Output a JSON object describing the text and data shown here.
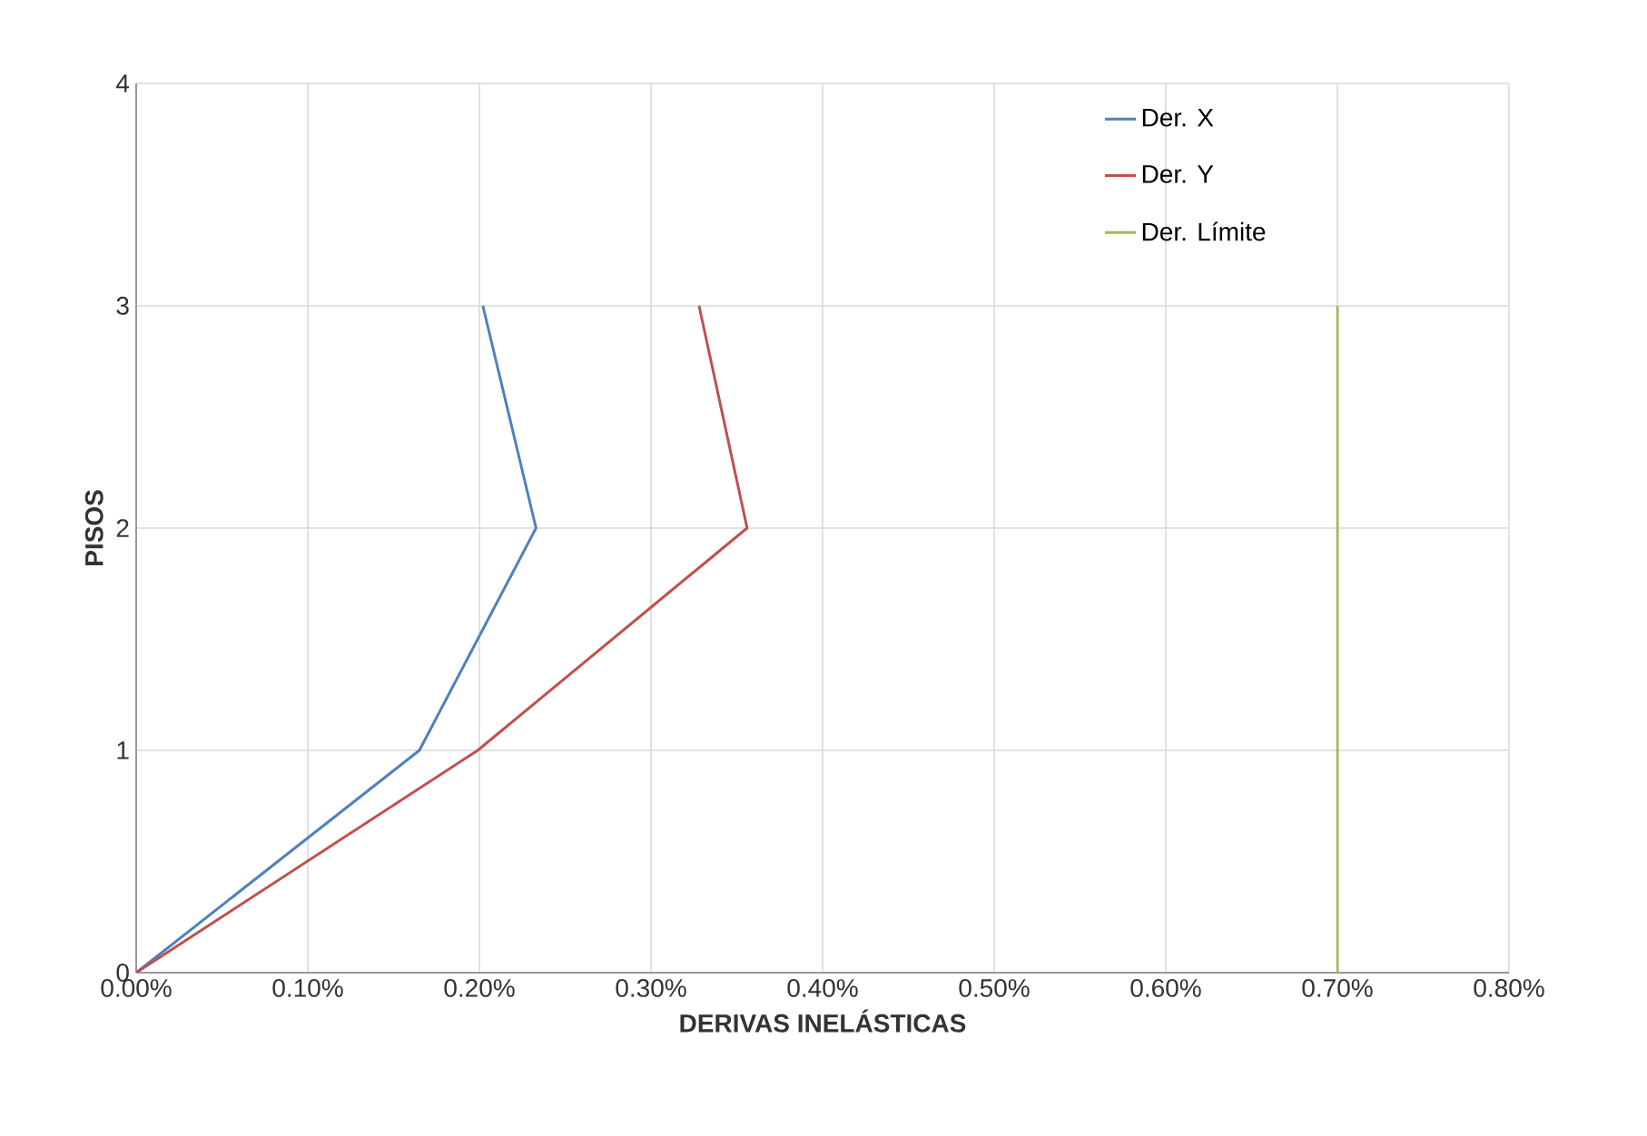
{
  "chart_data": {
    "type": "line",
    "xlabel": "DERIVAS INELÁSTICAS",
    "ylabel": "PISOS",
    "xlim": [
      0,
      0.8
    ],
    "ylim": [
      0,
      4
    ],
    "xticks": [
      {
        "value": 0,
        "label": "0.00%"
      },
      {
        "value": 0.1,
        "label": "0.10%"
      },
      {
        "value": 0.2,
        "label": "0.20%"
      },
      {
        "value": 0.3,
        "label": "0.30%"
      },
      {
        "value": 0.4,
        "label": "0.40%"
      },
      {
        "value": 0.5,
        "label": "0.50%"
      },
      {
        "value": 0.6,
        "label": "0.60%"
      },
      {
        "value": 0.7,
        "label": "0.70%"
      },
      {
        "value": 0.8,
        "label": "0.80%"
      }
    ],
    "yticks": [
      0,
      1,
      2,
      3,
      4
    ],
    "grid": true,
    "legend": "top right",
    "marker": "none",
    "line_style": "solid",
    "series": [
      {
        "name": "Der. X",
        "color": "#4f81bd",
        "x": [
          0,
          0.165,
          0.233,
          0.202
        ],
        "values": [
          0,
          1,
          2,
          3
        ]
      },
      {
        "name": "Der. Y",
        "color": "#c0504d",
        "x": [
          0,
          0.199,
          0.356,
          0.328
        ],
        "values": [
          0,
          1,
          2,
          3
        ]
      },
      {
        "name": "Der. Límite",
        "color": "#9bbb59",
        "x": [
          0.7,
          0.7
        ],
        "values": [
          0,
          3
        ]
      }
    ]
  }
}
